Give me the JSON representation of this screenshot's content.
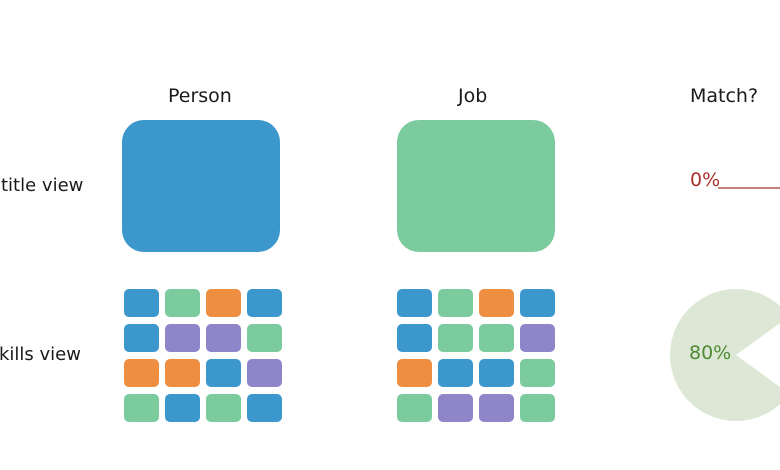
{
  "headers": {
    "person": "Person",
    "job": "Job",
    "match": "Match?"
  },
  "rows": {
    "title_view": "title view",
    "skills_view": "kills view"
  },
  "colors": {
    "blue": "#3b97cc",
    "green": "#7bcb9f",
    "orange": "#ee8e40",
    "purple": "#8e86c9",
    "match_low": "#a8322c",
    "match_high": "#4f8a35",
    "pie_fill": "#dce8d5"
  },
  "title_view": {
    "person_color": "blue",
    "job_color": "green",
    "match_label": "0%",
    "match_fraction": 0.0
  },
  "skills_view": {
    "person_grid": [
      [
        "blue",
        "green",
        "orange",
        "blue"
      ],
      [
        "blue",
        "purple",
        "purple",
        "green"
      ],
      [
        "orange",
        "orange",
        "blue",
        "purple"
      ],
      [
        "green",
        "blue",
        "green",
        "blue"
      ]
    ],
    "job_grid": [
      [
        "blue",
        "green",
        "orange",
        "blue"
      ],
      [
        "blue",
        "green",
        "green",
        "purple"
      ],
      [
        "orange",
        "blue",
        "blue",
        "green"
      ],
      [
        "green",
        "purple",
        "purple",
        "green"
      ]
    ],
    "match_label": "80%",
    "match_fraction": 0.8
  }
}
